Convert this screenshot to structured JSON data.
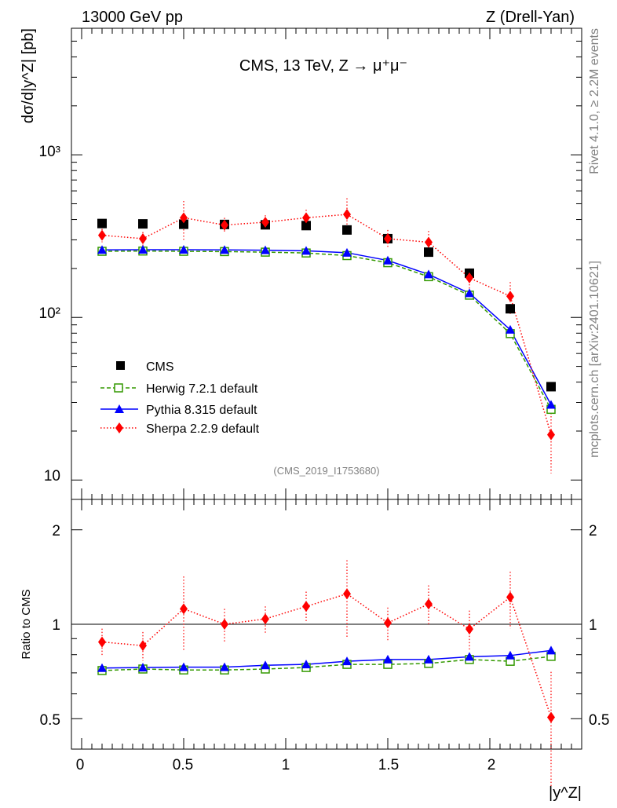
{
  "header": {
    "left": "13000 GeV pp",
    "right": "Z (Drell-Yan)"
  },
  "side_labels": {
    "rivet": "Rivet 4.1.0, ≥ 2.2M events",
    "mcplots": "mcplots.cern.ch [arXiv:2401.10621]"
  },
  "main_plot": {
    "title": "CMS, 13 TeV, Z → μ⁺μ⁻",
    "ylabel": "dσ/d|y^Z| [pb]",
    "analysis_id": "(CMS_2019_I1753680)",
    "ytick_labels": [
      "10",
      "10²",
      "10³"
    ]
  },
  "ratio_plot": {
    "ylabel": "Ratio to CMS",
    "ytick_labels": [
      "0.5",
      "1",
      "2"
    ]
  },
  "xaxis": {
    "label": "|y^Z|",
    "tick_labels": [
      "0",
      "0.5",
      "1",
      "1.5",
      "2"
    ]
  },
  "legend": {
    "cms": "CMS",
    "herwig": "Herwig 7.2.1 default",
    "pythia": "Pythia 8.315 default",
    "sherpa": "Sherpa 2.2.9 default"
  },
  "colors": {
    "cms": "#000000",
    "herwig": "#339900",
    "pythia": "#0000ff",
    "sherpa": "#ff0000"
  },
  "chart_data": [
    {
      "type": "line",
      "scale": "log",
      "title": "CMS, 13 TeV, Z → μ⁺μ⁻",
      "xlabel": "|y^Z|",
      "ylabel": "dσ/d|y^Z| [pb]",
      "xlim": [
        -0.05,
        2.45
      ],
      "ylim": [
        7.6,
        6000
      ],
      "x": [
        0.1,
        0.3,
        0.5,
        0.7,
        0.9,
        1.1,
        1.3,
        1.5,
        1.7,
        1.9,
        2.1,
        2.3
      ],
      "series": [
        {
          "name": "CMS",
          "values": [
            378,
            376,
            374,
            373,
            371,
            367,
            345,
            305,
            252,
            187,
            113,
            37.5
          ]
        },
        {
          "name": "Herwig 7.2.1 default",
          "values": [
            255,
            256,
            255,
            254,
            252,
            249,
            240,
            217,
            178,
            137,
            79.5,
            27.2
          ]
        },
        {
          "name": "Pythia 8.315 default",
          "values": [
            260,
            261,
            261,
            260,
            259,
            257,
            250,
            224,
            184,
            141,
            84,
            29
          ]
        },
        {
          "name": "Sherpa 2.2.9 default",
          "values": [
            320,
            305,
            410,
            370,
            385,
            410,
            430,
            305,
            290,
            175,
            135,
            19
          ],
          "errors": [
            30,
            30,
            110,
            40,
            40,
            50,
            110,
            40,
            50,
            25,
            30,
            8
          ]
        }
      ]
    },
    {
      "type": "line",
      "scale": "log",
      "ylabel": "Ratio to CMS",
      "xlabel": "|y^Z|",
      "xlim": [
        -0.05,
        2.45
      ],
      "ylim": [
        0.4,
        2.5
      ],
      "x": [
        0.1,
        0.3,
        0.5,
        0.7,
        0.9,
        1.1,
        1.3,
        1.5,
        1.7,
        1.9,
        2.1,
        2.3
      ],
      "series": [
        {
          "name": "Herwig 7.2.1 default",
          "values": [
            0.712,
            0.72,
            0.715,
            0.715,
            0.72,
            0.728,
            0.745,
            0.745,
            0.75,
            0.772,
            0.762,
            0.79
          ]
        },
        {
          "name": "Pythia 8.315 default",
          "values": [
            0.725,
            0.728,
            0.73,
            0.73,
            0.74,
            0.745,
            0.762,
            0.772,
            0.772,
            0.788,
            0.795,
            0.825
          ]
        },
        {
          "name": "Sherpa 2.2.9 default",
          "values": [
            0.878,
            0.855,
            1.12,
            1.0,
            1.04,
            1.14,
            1.25,
            1.01,
            1.16,
            0.965,
            1.22,
            0.505
          ],
          "errors": [
            0.09,
            0.09,
            0.3,
            0.12,
            0.1,
            0.13,
            0.35,
            0.12,
            0.17,
            0.14,
            0.25,
            0.2
          ]
        }
      ]
    }
  ]
}
